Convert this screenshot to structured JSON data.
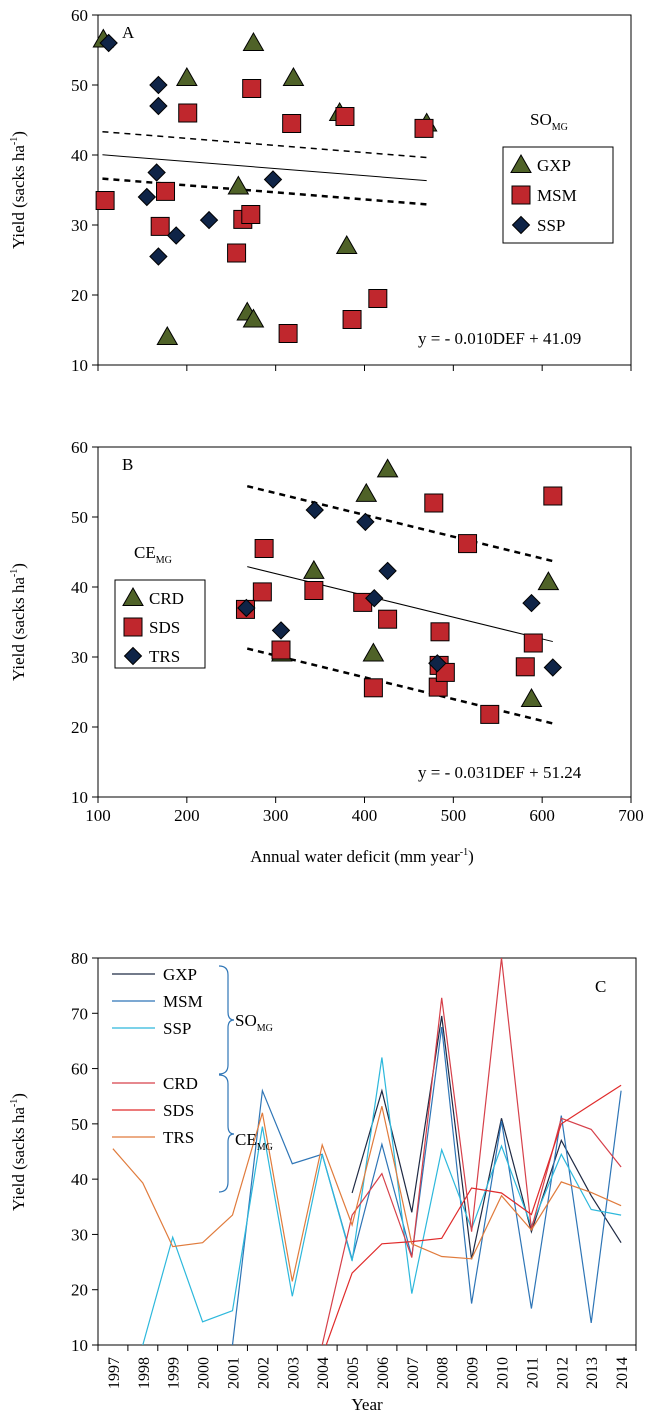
{
  "chart_data": [
    {
      "panel": "A",
      "type": "scatter",
      "panel_label": "A",
      "xlabel": "",
      "ylabel": "Yield (sacks ha",
      "ylabel_sup": "-1",
      "ylabel_close": ")",
      "xlim": [
        100,
        700
      ],
      "ylim": [
        10,
        60
      ],
      "y_ticks": [
        10,
        20,
        30,
        40,
        50,
        60
      ],
      "x_ticks": [
        100,
        200,
        300,
        400,
        500,
        600,
        700
      ],
      "show_x_tick_labels": false,
      "group_label": "SO",
      "group_label_sub": "MG",
      "legend": {
        "position": "right",
        "boxed": true
      },
      "equation": "y = - 0.010DEF + 41.09",
      "regression": {
        "slope": -0.0101,
        "intercept": 41.09,
        "x_range": [
          105,
          470
        ],
        "band_upper": 3.3,
        "band_lower": 3.4
      },
      "series": [
        {
          "name": "GXP",
          "marker": "triangle",
          "color": "#4f6228",
          "points": [
            [
              106,
              56.5
            ],
            [
              200,
              51
            ],
            [
              275,
              56
            ],
            [
              320,
              51
            ],
            [
              372,
              46
            ],
            [
              470,
              44.5
            ],
            [
              258,
              35.5
            ],
            [
              380,
              27
            ],
            [
              268,
              17.5
            ],
            [
              275,
              16.5
            ],
            [
              178,
              14
            ]
          ]
        },
        {
          "name": "MSM",
          "marker": "square",
          "color": "#c0272d",
          "points": [
            [
              108,
              33.5
            ],
            [
              176,
              34.8
            ],
            [
              170,
              29.8
            ],
            [
              201,
              46
            ],
            [
              273,
              49.5
            ],
            [
              318,
              44.5
            ],
            [
              378,
              45.5
            ],
            [
              467,
              43.8
            ],
            [
              263,
              30.8
            ],
            [
              272,
              31.5
            ],
            [
              256,
              26
            ],
            [
              314,
              14.5
            ],
            [
              386,
              16.5
            ],
            [
              415,
              19.5
            ]
          ]
        },
        {
          "name": "SSP",
          "marker": "diamond",
          "color": "#0f2447",
          "points": [
            [
              112,
              56
            ],
            [
              168,
              50
            ],
            [
              168,
              47
            ],
            [
              166,
              37.5
            ],
            [
              155,
              34
            ],
            [
              188,
              28.5
            ],
            [
              168,
              25.5
            ],
            [
              225,
              30.7
            ],
            [
              297,
              36.5
            ]
          ]
        }
      ]
    },
    {
      "panel": "B",
      "type": "scatter",
      "panel_label": "B",
      "xlabel": "Annual water deficit (mm year",
      "xlabel_sup": "-1",
      "xlabel_close": ")",
      "ylabel": "Yield (sacks ha",
      "ylabel_sup": "-1",
      "ylabel_close": ")",
      "xlim": [
        100,
        700
      ],
      "ylim": [
        10,
        60
      ],
      "y_ticks": [
        10,
        20,
        30,
        40,
        50,
        60
      ],
      "x_ticks": [
        100,
        200,
        300,
        400,
        500,
        600,
        700
      ],
      "show_x_tick_labels": true,
      "group_label": "CE",
      "group_label_sub": "MG",
      "legend": {
        "position": "left",
        "boxed": true
      },
      "equation": "y = - 0.031DEF + 51.24",
      "regression": {
        "slope": -0.0311,
        "intercept": 51.24,
        "x_range": [
          268,
          612
        ],
        "band_upper": 11.5,
        "band_lower": 11.7
      },
      "series": [
        {
          "name": "CRD",
          "marker": "triangle",
          "color": "#4f6228",
          "points": [
            [
              426,
              56.8
            ],
            [
              402,
              53.3
            ],
            [
              343,
              42.3
            ],
            [
              607,
              40.7
            ],
            [
              307,
              30.5
            ],
            [
              410,
              30.5
            ],
            [
              588,
              24
            ]
          ]
        },
        {
          "name": "SDS",
          "marker": "square",
          "color": "#c0272d",
          "points": [
            [
              478,
              52
            ],
            [
              612,
              53
            ],
            [
              287,
              45.5
            ],
            [
              516,
              46.2
            ],
            [
              285,
              39.3
            ],
            [
              343,
              39.5
            ],
            [
              398,
              37.8
            ],
            [
              426,
              35.4
            ],
            [
              485,
              33.6
            ],
            [
              266,
              36.8
            ],
            [
              306,
              31
            ],
            [
              410,
              25.6
            ],
            [
              483,
              25.7
            ],
            [
              484,
              28.8
            ],
            [
              491,
              27.8
            ],
            [
              541,
              21.8
            ],
            [
              581,
              28.6
            ],
            [
              590,
              32
            ]
          ]
        },
        {
          "name": "TRS",
          "marker": "diamond",
          "color": "#0f2447",
          "points": [
            [
              344,
              51
            ],
            [
              401,
              49.3
            ],
            [
              426,
              42.3
            ],
            [
              411,
              38.4
            ],
            [
              306,
              33.8
            ],
            [
              267,
              37
            ],
            [
              482,
              29.1
            ],
            [
              588,
              37.7
            ],
            [
              612,
              28.5
            ]
          ]
        }
      ]
    },
    {
      "panel": "C",
      "type": "line",
      "panel_label": "C",
      "xlabel": "Year",
      "ylabel": "Yield (sacks ha",
      "ylabel_sup": "-1",
      "ylabel_close": ")",
      "ylim": [
        10,
        80
      ],
      "y_ticks": [
        10,
        20,
        30,
        40,
        50,
        60,
        70,
        80
      ],
      "categories": [
        "1997",
        "1998",
        "1999",
        "2000",
        "2001",
        "2002",
        "2003",
        "2004",
        "2005",
        "2006",
        "2007",
        "2008",
        "2009",
        "2010",
        "2011",
        "2012",
        "2013",
        "2014"
      ],
      "legend": {
        "position": "top-left",
        "boxed": false
      },
      "group_labels": [
        {
          "label": "SO",
          "sub": "MG"
        },
        {
          "label": "CE",
          "sub": "MG"
        }
      ],
      "series": [
        {
          "name": "GXP",
          "color": "#1f2a44",
          "values": [
            null,
            null,
            null,
            null,
            null,
            null,
            null,
            null,
            37.5,
            56,
            34,
            69.5,
            25.5,
            51,
            30.5,
            47,
            37,
            28.5
          ]
        },
        {
          "name": "MSM",
          "color": "#2e75b6",
          "values": [
            null,
            null,
            null,
            null,
            10,
            56,
            42.8,
            44.5,
            25.5,
            46.3,
            26,
            67.5,
            17.5,
            50.5,
            16.6,
            51.5,
            14,
            56
          ]
        },
        {
          "name": "SSP",
          "color": "#2db8dc",
          "values": [
            null,
            10,
            29.5,
            14.2,
            16.2,
            49.5,
            18.8,
            44.5,
            25.2,
            62,
            19.3,
            45.3,
            31,
            46,
            31.5,
            44.5,
            34.5,
            33.5
          ]
        },
        {
          "name": "CRD",
          "color": "#d6404a",
          "values": [
            null,
            null,
            null,
            null,
            null,
            null,
            null,
            10,
            33.5,
            41,
            25.8,
            72.8,
            30.5,
            80,
            31,
            51,
            49,
            42.2
          ]
        },
        {
          "name": "SDS",
          "color": "#e02b2b",
          "values": [
            null,
            null,
            null,
            null,
            null,
            null,
            null,
            8,
            23,
            28.3,
            28.7,
            29.3,
            38.4,
            37.5,
            33.6,
            50,
            53.5,
            57
          ]
        },
        {
          "name": "TRS",
          "color": "#e07b3c",
          "values": [
            45.5,
            39.3,
            27.8,
            28.5,
            33.5,
            52,
            21.5,
            46.2,
            31.7,
            53.2,
            28.3,
            26,
            25.6,
            37,
            30.8,
            39.5,
            37.6,
            35.2
          ]
        }
      ]
    }
  ]
}
